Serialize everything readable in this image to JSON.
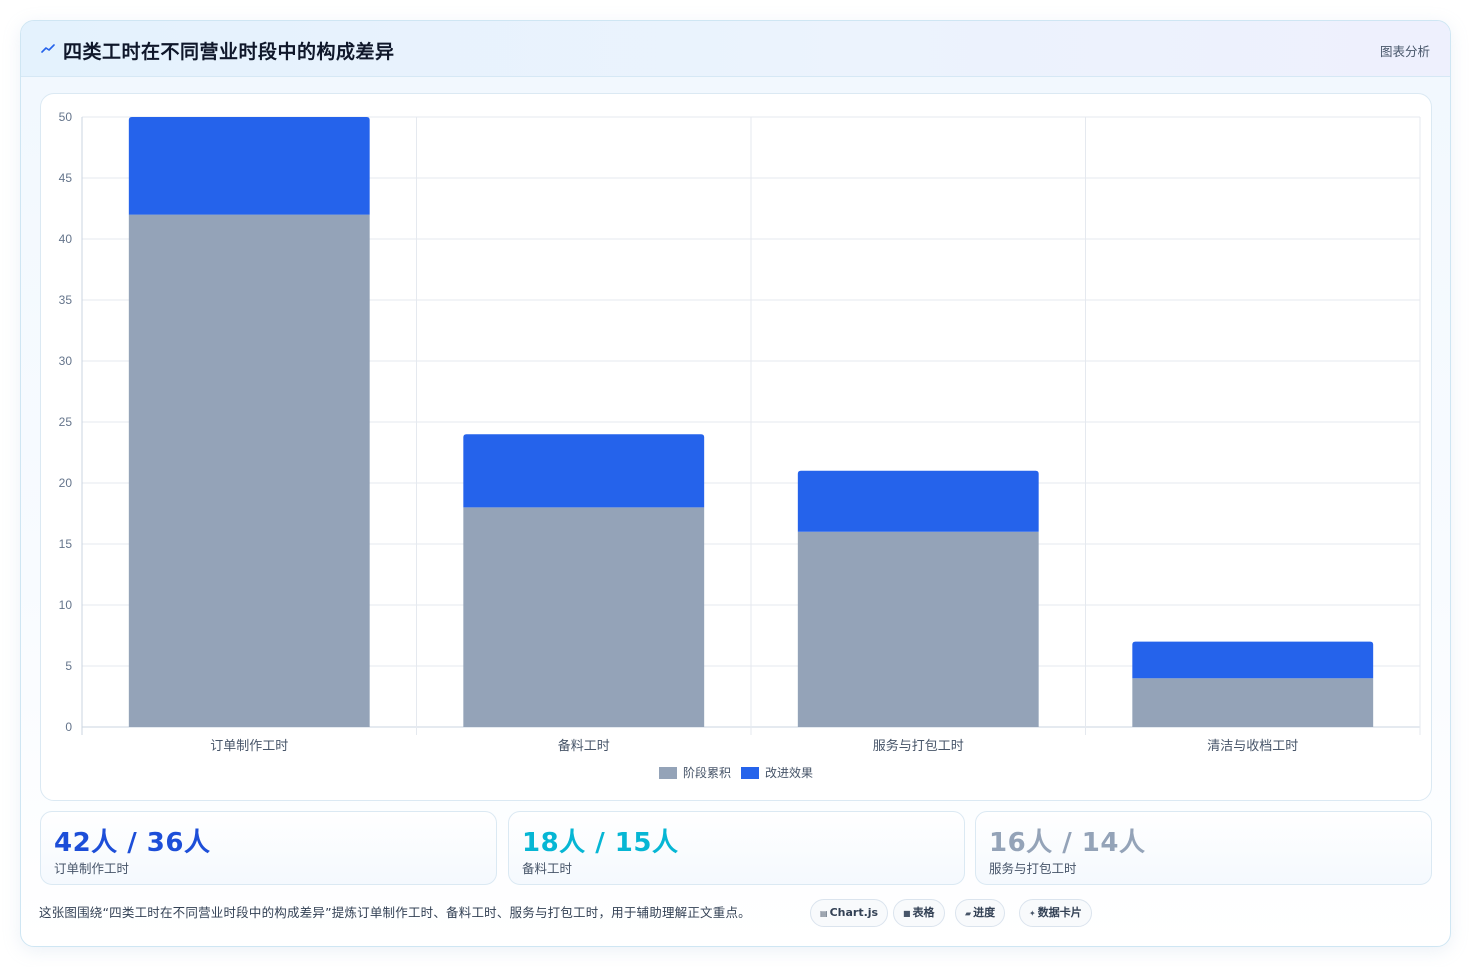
{
  "header": {
    "title": "四类工时在不同营业时段中的构成差异",
    "tag": "图表分析"
  },
  "chart_data": {
    "type": "bar",
    "stacked": true,
    "categories": [
      "订单制作工时",
      "备料工时",
      "服务与打包工时",
      "清洁与收档工时"
    ],
    "series": [
      {
        "name": "阶段累积",
        "values": [
          42,
          18,
          16,
          4
        ],
        "color": "#94a3b8"
      },
      {
        "name": "改进效果",
        "values": [
          8,
          6,
          5,
          3
        ],
        "color": "#2563eb"
      }
    ],
    "ylim": [
      0,
      50
    ],
    "yticks": [
      0,
      5,
      10,
      15,
      20,
      25,
      30,
      35,
      40,
      45,
      50
    ],
    "grid": true,
    "legend_position": "bottom"
  },
  "stats": [
    {
      "value": "42人 / 36人",
      "label": "订单制作工时",
      "color": "#1d4ed8"
    },
    {
      "value": "18人 / 15人",
      "label": "备料工时",
      "color": "#06b6d4"
    },
    {
      "value": "16人 / 14人",
      "label": "服务与打包工时",
      "color": "#94a3b8"
    }
  ],
  "note": "这张图围绕“四类工时在不同营业时段中的构成差异”提炼订单制作工时、备料工时、服务与打包工时，用于辅助理解正文重点。",
  "chips": [
    {
      "icon": "▤",
      "label": "Chart.js"
    },
    {
      "icon": "■",
      "label": "表格"
    },
    {
      "icon": "▰",
      "label": "进度"
    },
    {
      "icon": "✦",
      "label": "数据卡片"
    }
  ]
}
